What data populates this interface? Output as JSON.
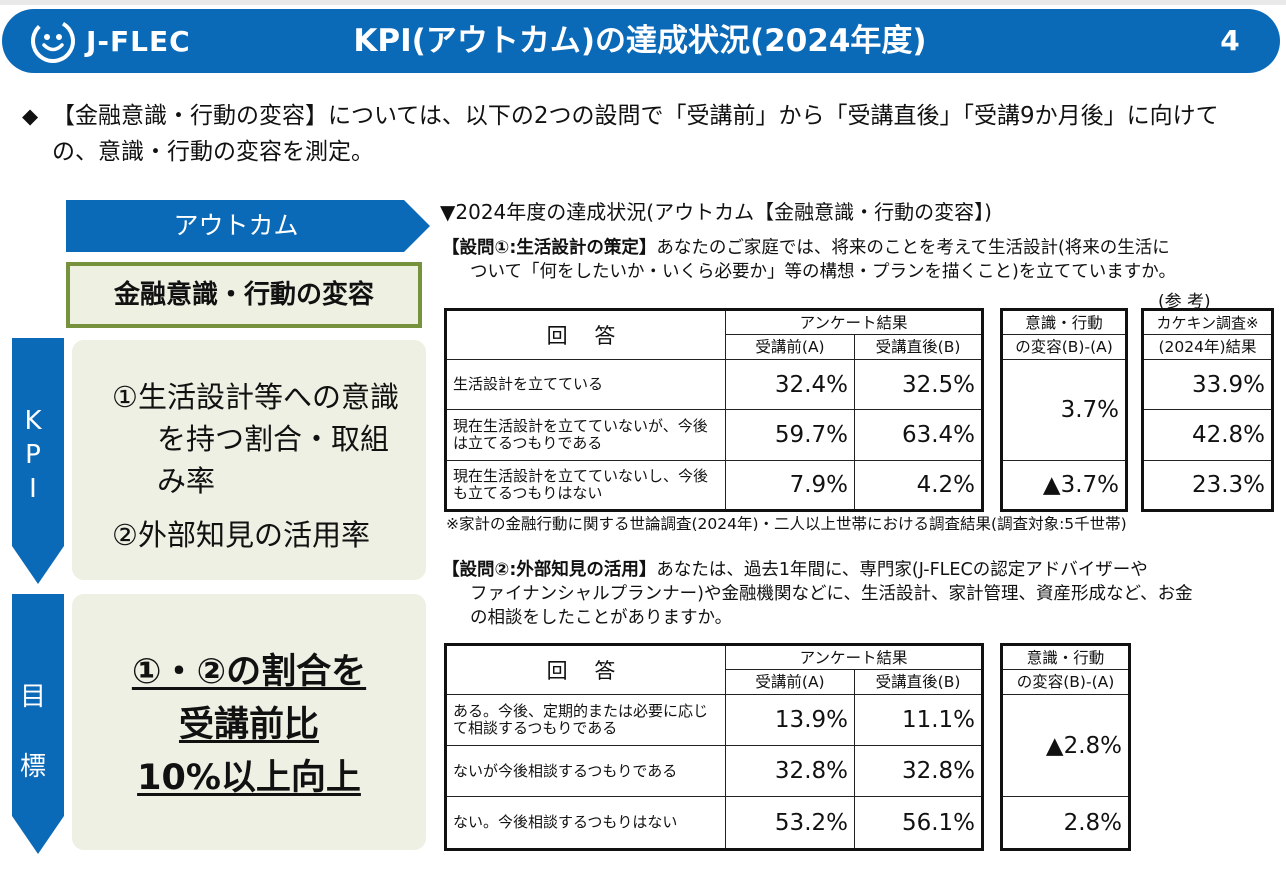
{
  "header": {
    "logo_text": "J-FLEC",
    "title": "KPI(アウトカム)の達成状況(2024年度)",
    "page_number": "4",
    "bar_color": "#0b6ab8"
  },
  "intro": {
    "bullet": "◆",
    "text": "【金融意識・行動の変容】については、以下の2つの設問で「受講前」から「受講直後」「受講9か月後」に向けての、意識・行動の変容を測定。"
  },
  "left": {
    "outcome_label": "アウトカム",
    "behavior_label": "金融意識・行動の変容",
    "kpi_label": [
      "K",
      "P",
      "I"
    ],
    "kpi_item1": "①生活設計等への意識を持つ割合・取組み率",
    "kpi_item2": "②外部知見の活用率",
    "goal_label": [
      "目",
      "標"
    ],
    "goal_lines": [
      "①・②の割合を",
      "受講前比",
      "10%以上向上"
    ]
  },
  "status_title": "▼2024年度の達成状況(アウトカム【金融意識・行動の変容】)",
  "q1": {
    "title": "【設問①:生活設計の策定】",
    "text1": "あなたのご家庭では、将来のことを考えて生活設計(将来の生活に",
    "text2": "ついて「何をしたいか・いくら必要か」等の構想・プランを描くこと)を立てていますか。",
    "ref_note": "(参 考)",
    "headers": {
      "answer": "回 答",
      "survey": "アンケート結果",
      "before": "受講前(A)",
      "after": "受講直後(B)",
      "change1": "意識・行動",
      "change2": "の変容(B)-(A)",
      "ref1": "カケキン調査※",
      "ref2": "(2024年)結果"
    },
    "rows": [
      {
        "label": "生活設計を立てている",
        "before": "32.4%",
        "after": "32.5%",
        "ref": "33.9%"
      },
      {
        "label": "現在生活設計を立てていないが、今後は立てるつもりである",
        "before": "59.7%",
        "after": "63.4%",
        "ref": "42.8%"
      },
      {
        "label": "現在生活設計を立てていないし、今後も立てるつもりはない",
        "before": "7.9%",
        "after": "4.2%",
        "ref": "23.3%"
      }
    ],
    "change_top": "3.7%",
    "change_bottom": "▲3.7%",
    "footnote": "※家計の金融行動に関する世論調査(2024年)・二人以上世帯における調査結果(調査対象:5千世帯)"
  },
  "q2": {
    "title": "【設問②:外部知見の活用】",
    "text1": "あなたは、過去1年間に、専門家(J-FLECの認定アドバイザーや",
    "text2": "ファイナンシャルプランナー)や金融機関などに、生活設計、家計管理、資産形成など、お金",
    "text3": "の相談をしたことがありますか。",
    "headers": {
      "answer": "回 答",
      "survey": "アンケート結果",
      "before": "受講前(A)",
      "after": "受講直後(B)",
      "change1": "意識・行動",
      "change2": "の変容(B)-(A)"
    },
    "rows": [
      {
        "label": "ある。今後、定期的または必要に応じて相談するつもりである",
        "before": "13.9%",
        "after": "11.1%"
      },
      {
        "label": "ないが今後相談するつもりである",
        "before": "32.8%",
        "after": "32.8%"
      },
      {
        "label": "ない。今後相談するつもりはない",
        "before": "53.2%",
        "after": "56.1%"
      }
    ],
    "change_top": "▲2.8%",
    "change_bottom": "2.8%"
  },
  "colors": {
    "brand_blue": "#0b6ab8",
    "box_green_border": "#76923c",
    "box_fill": "#edf0e3"
  }
}
